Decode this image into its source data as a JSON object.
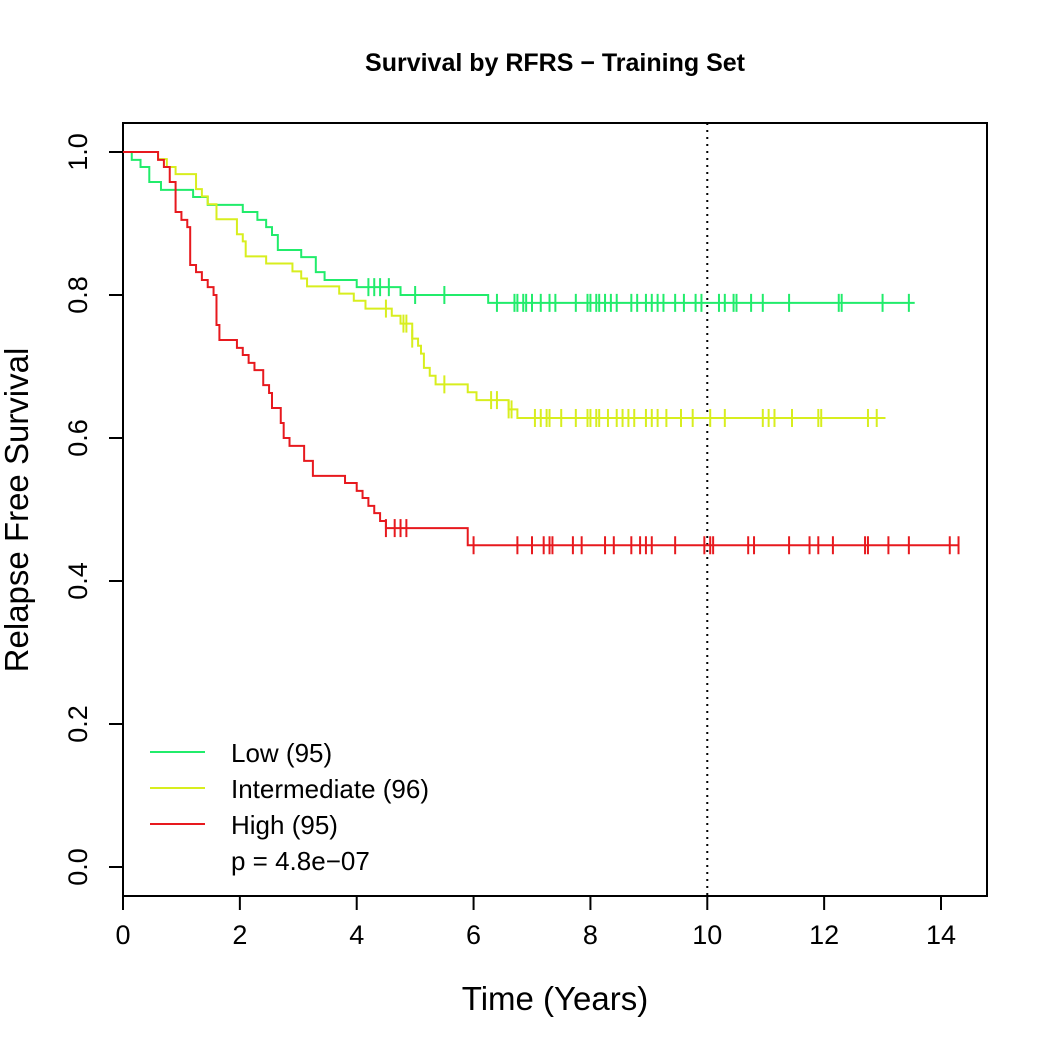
{
  "chart_data": {
    "type": "line",
    "subtype": "kaplan-meier survival curve",
    "title": "Survival by RFRS − Training Set",
    "xlabel": "Time (Years)",
    "ylabel": "Relapse Free Survival",
    "xlim": [
      0,
      14.5
    ],
    "ylim": [
      0,
      1.0
    ],
    "x_ticks": [
      "0",
      "2",
      "4",
      "6",
      "8",
      "10",
      "12",
      "14"
    ],
    "y_ticks": [
      "0.0",
      "0.2",
      "0.4",
      "0.6",
      "0.8",
      "1.0"
    ],
    "grid": false,
    "legend_position": "bottom-left",
    "reference_line": {
      "x": 10,
      "style": "dotted"
    },
    "annotation": "p = 4.8e−07",
    "series": [
      {
        "name": "Low (95)",
        "color": "#21ec6b",
        "steps": [
          [
            0,
            1.0
          ],
          [
            0.15,
            0.989
          ],
          [
            0.3,
            0.979
          ],
          [
            0.45,
            0.958
          ],
          [
            0.65,
            0.947
          ],
          [
            1.2,
            0.937
          ],
          [
            1.45,
            0.926
          ],
          [
            2.05,
            0.916
          ],
          [
            2.3,
            0.905
          ],
          [
            2.45,
            0.895
          ],
          [
            2.55,
            0.884
          ],
          [
            2.65,
            0.863
          ],
          [
            3.05,
            0.853
          ],
          [
            3.3,
            0.832
          ],
          [
            3.45,
            0.821
          ],
          [
            4.0,
            0.811
          ],
          [
            4.75,
            0.8
          ],
          [
            6.25,
            0.789
          ],
          [
            13.55,
            0.789
          ]
        ],
        "censor": [
          4.2,
          4.3,
          4.4,
          4.55,
          5.0,
          5.5,
          6.4,
          6.7,
          6.75,
          6.85,
          6.9,
          7.0,
          7.15,
          7.3,
          7.4,
          7.75,
          7.95,
          8.0,
          8.1,
          8.15,
          8.25,
          8.35,
          8.45,
          8.7,
          8.8,
          8.95,
          9.05,
          9.15,
          9.25,
          9.45,
          9.6,
          9.8,
          9.9,
          10.2,
          10.3,
          10.45,
          10.5,
          10.75,
          10.95,
          11.4,
          12.25,
          12.3,
          13.0,
          13.45
        ]
      },
      {
        "name": "Intermediate (96)",
        "color": "#d8ee1e",
        "steps": [
          [
            0,
            1.0
          ],
          [
            0.6,
            0.99
          ],
          [
            0.75,
            0.979
          ],
          [
            0.9,
            0.969
          ],
          [
            1.25,
            0.948
          ],
          [
            1.35,
            0.938
          ],
          [
            1.45,
            0.927
          ],
          [
            1.6,
            0.906
          ],
          [
            1.95,
            0.885
          ],
          [
            2.05,
            0.875
          ],
          [
            2.1,
            0.854
          ],
          [
            2.45,
            0.844
          ],
          [
            2.9,
            0.833
          ],
          [
            3.05,
            0.823
          ],
          [
            3.15,
            0.812
          ],
          [
            3.7,
            0.802
          ],
          [
            3.95,
            0.792
          ],
          [
            4.15,
            0.781
          ],
          [
            4.6,
            0.771
          ],
          [
            4.75,
            0.76
          ],
          [
            4.95,
            0.739
          ],
          [
            5.05,
            0.729
          ],
          [
            5.1,
            0.718
          ],
          [
            5.15,
            0.698
          ],
          [
            5.25,
            0.687
          ],
          [
            5.35,
            0.675
          ],
          [
            5.9,
            0.664
          ],
          [
            6.05,
            0.653
          ],
          [
            6.6,
            0.64
          ],
          [
            6.75,
            0.628
          ],
          [
            13.05,
            0.628
          ]
        ],
        "censor": [
          4.5,
          4.8,
          4.85,
          4.95,
          5.5,
          6.3,
          6.4,
          6.6,
          6.65,
          7.05,
          7.15,
          7.25,
          7.3,
          7.5,
          7.75,
          7.95,
          8.0,
          8.1,
          8.15,
          8.3,
          8.45,
          8.55,
          8.65,
          8.75,
          8.95,
          9.05,
          9.15,
          9.3,
          9.55,
          9.75,
          10.05,
          10.3,
          10.95,
          11.05,
          11.15,
          11.45,
          11.9,
          11.95,
          12.75,
          12.9
        ]
      },
      {
        "name": "High (95)",
        "color": "#e7191e",
        "steps": [
          [
            0,
            1.0
          ],
          [
            0.6,
            0.989
          ],
          [
            0.7,
            0.979
          ],
          [
            0.8,
            0.958
          ],
          [
            0.9,
            0.916
          ],
          [
            1.0,
            0.905
          ],
          [
            1.1,
            0.895
          ],
          [
            1.15,
            0.842
          ],
          [
            1.25,
            0.832
          ],
          [
            1.35,
            0.821
          ],
          [
            1.45,
            0.811
          ],
          [
            1.55,
            0.8
          ],
          [
            1.6,
            0.758
          ],
          [
            1.65,
            0.737
          ],
          [
            1.95,
            0.726
          ],
          [
            2.05,
            0.716
          ],
          [
            2.15,
            0.705
          ],
          [
            2.25,
            0.695
          ],
          [
            2.4,
            0.674
          ],
          [
            2.5,
            0.663
          ],
          [
            2.55,
            0.642
          ],
          [
            2.7,
            0.621
          ],
          [
            2.75,
            0.6
          ],
          [
            2.85,
            0.589
          ],
          [
            3.1,
            0.568
          ],
          [
            3.25,
            0.547
          ],
          [
            3.8,
            0.537
          ],
          [
            4.0,
            0.526
          ],
          [
            4.1,
            0.516
          ],
          [
            4.2,
            0.505
          ],
          [
            4.3,
            0.495
          ],
          [
            4.4,
            0.484
          ],
          [
            4.5,
            0.474
          ],
          [
            5.9,
            0.45
          ],
          [
            14.3,
            0.45
          ]
        ],
        "censor": [
          4.5,
          4.65,
          4.75,
          4.85,
          6.0,
          6.75,
          7.0,
          7.2,
          7.3,
          7.35,
          7.7,
          7.85,
          8.25,
          8.4,
          8.7,
          8.85,
          8.95,
          9.05,
          9.45,
          9.95,
          10.05,
          10.1,
          10.7,
          10.8,
          11.4,
          11.75,
          11.9,
          12.15,
          12.7,
          12.75,
          13.1,
          13.45,
          14.15,
          14.3
        ]
      }
    ]
  }
}
